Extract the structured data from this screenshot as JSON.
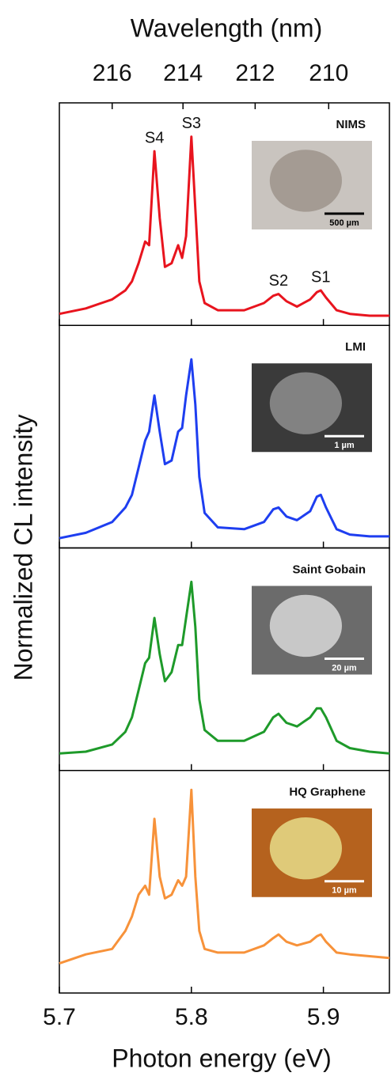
{
  "chart_data": {
    "type": "line",
    "xlabel": "Photon energy (eV)",
    "ylabel": "Normalized CL intensity",
    "x2label": "Wavelength (nm)",
    "xlim": [
      5.7,
      5.95
    ],
    "xticks": [
      5.7,
      5.8,
      5.9
    ],
    "x2ticks": [
      216,
      214,
      212,
      210
    ],
    "ylim": [
      0,
      1.1
    ],
    "x": [
      5.7,
      5.72,
      5.74,
      5.75,
      5.755,
      5.76,
      5.765,
      5.768,
      5.772,
      5.776,
      5.78,
      5.785,
      5.79,
      5.793,
      5.796,
      5.8,
      5.803,
      5.806,
      5.81,
      5.82,
      5.84,
      5.855,
      5.862,
      5.866,
      5.872,
      5.88,
      5.89,
      5.895,
      5.898,
      5.902,
      5.91,
      5.92,
      5.935,
      5.95
    ],
    "series": [
      {
        "name": "NIMS",
        "color": "#e8141e",
        "scale_bar": "500 µm",
        "values": [
          0.02,
          0.05,
          0.1,
          0.15,
          0.2,
          0.3,
          0.42,
          0.4,
          0.92,
          0.55,
          0.28,
          0.3,
          0.4,
          0.33,
          0.45,
          1.0,
          0.6,
          0.2,
          0.08,
          0.04,
          0.04,
          0.08,
          0.12,
          0.13,
          0.09,
          0.06,
          0.1,
          0.14,
          0.15,
          0.11,
          0.04,
          0.02,
          0.01,
          0.01
        ],
        "annotations": [
          {
            "text": "S4",
            "x": 5.772
          },
          {
            "text": "S3",
            "x": 5.8
          },
          {
            "text": "S2",
            "x": 5.866
          },
          {
            "text": "S1",
            "x": 5.898
          }
        ]
      },
      {
        "name": "LMI",
        "color": "#1e3ef0",
        "scale_bar": "1 µm",
        "values": [
          0.01,
          0.04,
          0.1,
          0.18,
          0.25,
          0.4,
          0.55,
          0.6,
          0.8,
          0.6,
          0.42,
          0.44,
          0.6,
          0.62,
          0.8,
          1.0,
          0.75,
          0.35,
          0.15,
          0.07,
          0.06,
          0.1,
          0.17,
          0.18,
          0.13,
          0.11,
          0.16,
          0.24,
          0.25,
          0.18,
          0.06,
          0.03,
          0.02,
          0.02
        ]
      },
      {
        "name": "Saint Gobain",
        "color": "#1e9a2a",
        "scale_bar": "20 µm",
        "values": [
          0.05,
          0.06,
          0.1,
          0.17,
          0.25,
          0.4,
          0.55,
          0.58,
          0.8,
          0.6,
          0.45,
          0.5,
          0.65,
          0.65,
          0.8,
          1.0,
          0.75,
          0.35,
          0.18,
          0.12,
          0.12,
          0.17,
          0.25,
          0.27,
          0.22,
          0.2,
          0.25,
          0.3,
          0.3,
          0.25,
          0.12,
          0.08,
          0.06,
          0.05
        ]
      },
      {
        "name": "HQ Graphene",
        "color": "#f7923a",
        "scale_bar": "10 µm",
        "values": [
          0.12,
          0.17,
          0.2,
          0.3,
          0.38,
          0.5,
          0.55,
          0.5,
          0.92,
          0.6,
          0.48,
          0.5,
          0.58,
          0.55,
          0.6,
          1.08,
          0.6,
          0.3,
          0.2,
          0.18,
          0.18,
          0.22,
          0.26,
          0.28,
          0.24,
          0.22,
          0.24,
          0.27,
          0.28,
          0.24,
          0.18,
          0.17,
          0.16,
          0.15
        ]
      }
    ]
  }
}
